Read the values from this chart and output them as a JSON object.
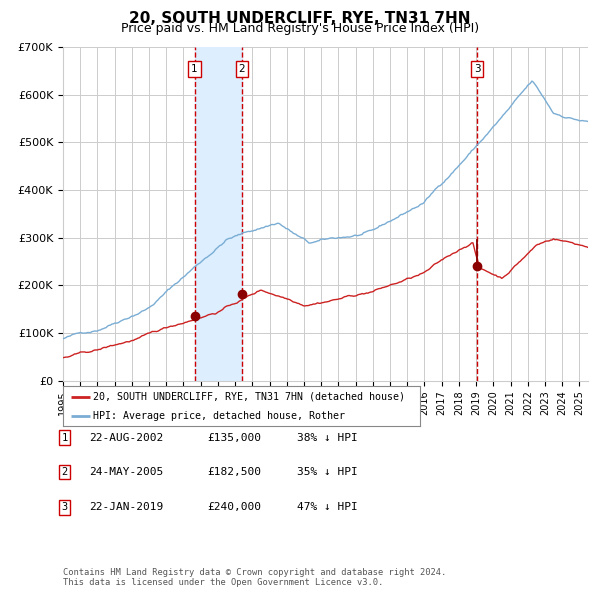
{
  "title": "20, SOUTH UNDERCLIFF, RYE, TN31 7HN",
  "subtitle": "Price paid vs. HM Land Registry's House Price Index (HPI)",
  "title_fontsize": 11,
  "subtitle_fontsize": 9,
  "ylim": [
    0,
    700000
  ],
  "yticks": [
    0,
    100000,
    200000,
    300000,
    400000,
    500000,
    600000,
    700000
  ],
  "ytick_labels": [
    "£0",
    "£100K",
    "£200K",
    "£300K",
    "£400K",
    "£500K",
    "£600K",
    "£700K"
  ],
  "hpi_color": "#7aadd4",
  "price_color": "#cc2222",
  "marker_color": "#8B0000",
  "grid_color": "#cccccc",
  "background_color": "#ffffff",
  "sale_shading_color": "#ddeeff",
  "vline_color": "#cc0000",
  "transactions": [
    {
      "date_str": "22-AUG-2002",
      "date_x": 2002.644,
      "price": 135000,
      "label": "1"
    },
    {
      "date_str": "24-MAY-2005",
      "date_x": 2005.394,
      "price": 182500,
      "label": "2"
    },
    {
      "date_str": "22-JAN-2019",
      "date_x": 2019.056,
      "price": 240000,
      "label": "3"
    }
  ],
  "legend_entries": [
    "20, SOUTH UNDERCLIFF, RYE, TN31 7HN (detached house)",
    "HPI: Average price, detached house, Rother"
  ],
  "table_rows": [
    [
      "1",
      "22-AUG-2002",
      "£135,000",
      "38% ↓ HPI"
    ],
    [
      "2",
      "24-MAY-2005",
      "£182,500",
      "35% ↓ HPI"
    ],
    [
      "3",
      "22-JAN-2019",
      "£240,000",
      "47% ↓ HPI"
    ]
  ],
  "footnote": "Contains HM Land Registry data © Crown copyright and database right 2024.\nThis data is licensed under the Open Government Licence v3.0.",
  "xmin": 1995.0,
  "xmax": 2025.5
}
